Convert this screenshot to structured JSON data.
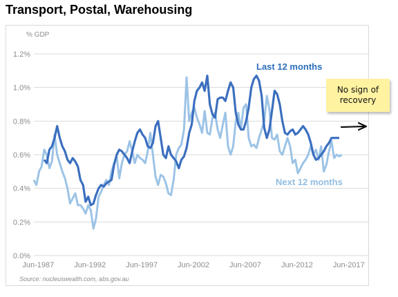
{
  "title": "Transport, Postal, Warehousing",
  "unit_label": "% GDP",
  "source": "Source: nucleuswealth.com, abs.gov.au",
  "annotation": {
    "text_line1": "No sign of",
    "text_line2": "recovery"
  },
  "colors": {
    "last": "#3b6fbf",
    "next": "#9cc3e6",
    "grid": "#d9d9d9",
    "axis_text": "#8c8c8c",
    "label_last": "#2a6ebb",
    "label_next": "#92bde0"
  },
  "chart_data": {
    "type": "line",
    "ylim": [
      0,
      1.2
    ],
    "y_ticks": [
      "0.0%",
      "0.2%",
      "0.4%",
      "0.6%",
      "0.8%",
      "1.0%",
      "1.2%"
    ],
    "x_ticks": [
      "Jun-1987",
      "Jun-1992",
      "Jun-1997",
      "Jun-2002",
      "Jun-2007",
      "Jun-2012",
      "Jun-2017"
    ],
    "x_range": [
      1987.0,
      2019.3
    ],
    "grid": true,
    "series": [
      {
        "name": "Last 12 months",
        "start": 1988.0,
        "step": 0.25,
        "values": [
          0.57,
          0.55,
          0.63,
          0.65,
          0.7,
          0.77,
          0.7,
          0.65,
          0.62,
          0.57,
          0.55,
          0.58,
          0.56,
          0.53,
          0.45,
          0.42,
          0.32,
          0.35,
          0.3,
          0.31,
          0.36,
          0.4,
          0.42,
          0.41,
          0.43,
          0.44,
          0.45,
          0.54,
          0.6,
          0.63,
          0.62,
          0.6,
          0.58,
          0.55,
          0.62,
          0.68,
          0.73,
          0.75,
          0.72,
          0.7,
          0.65,
          0.64,
          0.67,
          0.77,
          0.8,
          0.7,
          0.6,
          0.58,
          0.65,
          0.6,
          0.58,
          0.56,
          0.52,
          0.57,
          0.59,
          0.64,
          0.73,
          0.78,
          0.92,
          0.98,
          1.0,
          1.03,
          0.98,
          1.07,
          0.9,
          0.84,
          0.82,
          0.93,
          0.94,
          0.94,
          0.92,
          0.98,
          1.03,
          1.0,
          0.85,
          0.78,
          0.75,
          0.75,
          0.8,
          0.88,
          1.0,
          1.05,
          1.07,
          1.04,
          0.95,
          0.76,
          0.7,
          0.75,
          0.86,
          0.98,
          0.96,
          0.9,
          0.8,
          0.73,
          0.72,
          0.74,
          0.75,
          0.72,
          0.73,
          0.75,
          0.77,
          0.75,
          0.72,
          0.67,
          0.6,
          0.57,
          0.58,
          0.6,
          0.62,
          0.65,
          0.67,
          0.7,
          0.7,
          0.7,
          0.7
        ]
      },
      {
        "name": "Next 12 months",
        "start": 1987.0,
        "step": 0.25,
        "values": [
          0.45,
          0.42,
          0.5,
          0.53,
          0.63,
          0.6,
          0.52,
          0.56,
          0.72,
          0.6,
          0.55,
          0.5,
          0.46,
          0.4,
          0.31,
          0.34,
          0.37,
          0.3,
          0.3,
          0.28,
          0.25,
          0.3,
          0.27,
          0.16,
          0.22,
          0.35,
          0.38,
          0.42,
          0.45,
          0.42,
          0.5,
          0.55,
          0.59,
          0.46,
          0.55,
          0.6,
          0.62,
          0.68,
          0.62,
          0.55,
          0.6,
          0.58,
          0.57,
          0.55,
          0.62,
          0.73,
          0.6,
          0.47,
          0.42,
          0.48,
          0.47,
          0.43,
          0.37,
          0.36,
          0.45,
          0.6,
          0.64,
          0.66,
          0.75,
          1.06,
          0.8,
          0.85,
          0.88,
          0.82,
          0.78,
          0.73,
          0.86,
          0.73,
          0.72,
          0.82,
          0.85,
          0.75,
          0.7,
          0.78,
          0.85,
          0.65,
          0.6,
          0.65,
          0.8,
          0.85,
          0.75,
          0.88,
          0.9,
          0.7,
          0.65,
          0.66,
          0.64,
          0.7,
          0.75,
          0.8,
          0.95,
          0.87,
          0.7,
          0.69,
          0.72,
          0.62,
          0.6,
          0.65,
          0.7,
          0.65,
          0.55,
          0.57,
          0.49,
          0.52,
          0.55,
          0.57,
          0.6,
          0.65,
          0.6,
          0.63,
          0.57,
          0.65,
          0.5,
          0.54,
          0.62,
          0.68,
          0.58,
          0.6,
          0.59,
          0.6
        ]
      }
    ]
  }
}
